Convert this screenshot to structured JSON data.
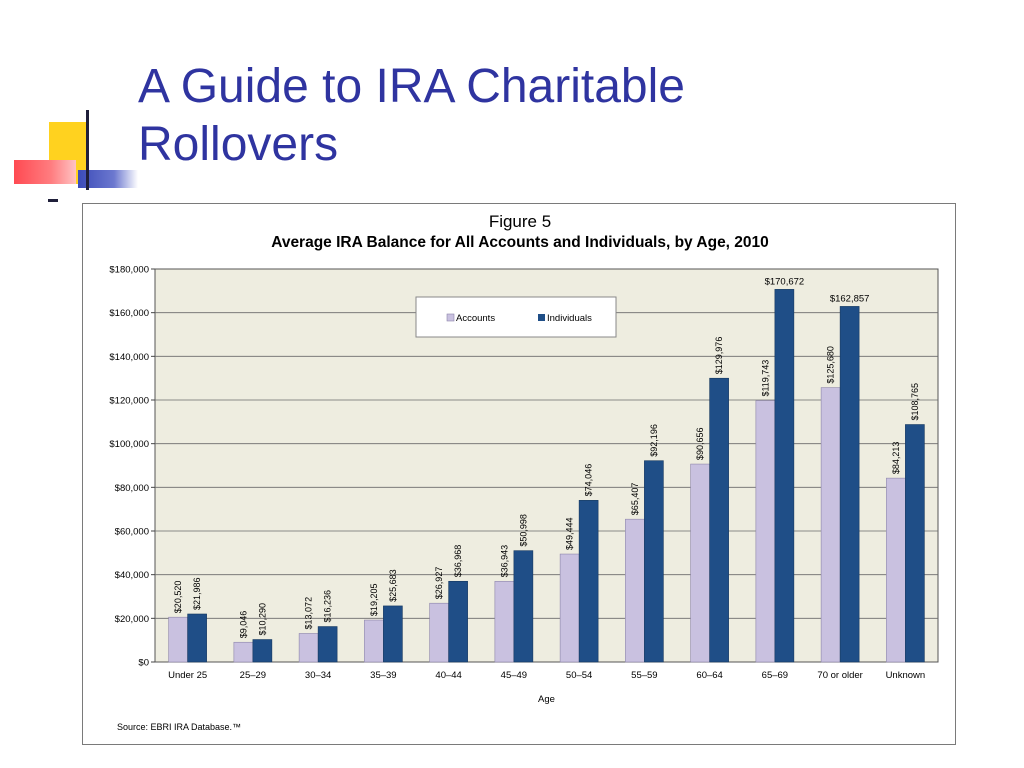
{
  "slide": {
    "title_line1": "A Guide to IRA Charitable",
    "title_line2": "Rollovers"
  },
  "figure": {
    "label": "Figure 5",
    "title": "Average IRA Balance for All Accounts and Individuals, by Age, 2010",
    "source": "Source: EBRI IRA Database.™"
  },
  "colors": {
    "accounts": "#c9c1e0",
    "individuals": "#1f4e87",
    "plot_background": "#eeede0",
    "slide_title": "#2f34a0"
  },
  "chart_data": {
    "type": "bar",
    "title": "Average IRA Balance for All Accounts and Individuals, by Age, 2010",
    "xlabel": "Age",
    "ylabel": "",
    "ylim": [
      0,
      180000
    ],
    "yticks": [
      "$0",
      "$20,000",
      "$40,000",
      "$60,000",
      "$80,000",
      "$100,000",
      "$120,000",
      "$140,000",
      "$160,000",
      "$180,000"
    ],
    "grid": true,
    "legend_position": "top-center",
    "categories": [
      "Under 25",
      "25–29",
      "30–34",
      "35–39",
      "40–44",
      "45–49",
      "50–54",
      "55–59",
      "60–64",
      "65–69",
      "70 or older",
      "Unknown"
    ],
    "series": [
      {
        "name": "Accounts",
        "values": [
          20520,
          9046,
          13072,
          19205,
          26927,
          36943,
          49444,
          65407,
          90656,
          119743,
          125680,
          84213
        ],
        "labels": [
          "$20,520",
          "$9,046",
          "$13,072",
          "$19,205",
          "$26,927",
          "$36,943",
          "$49,444",
          "$65,407",
          "$90,656",
          "$119,743",
          "$125,680",
          "$84,213"
        ]
      },
      {
        "name": "Individuals",
        "values": [
          21986,
          10290,
          16236,
          25683,
          36968,
          50998,
          74046,
          92196,
          129976,
          170672,
          162857,
          108765
        ],
        "labels": [
          "$21,986",
          "$10,290",
          "$16,236",
          "$25,683",
          "$36,968",
          "$50,998",
          "$74,046",
          "$92,196",
          "$129,976",
          "$170,672",
          "$162,857",
          "$108,765"
        ]
      }
    ]
  }
}
